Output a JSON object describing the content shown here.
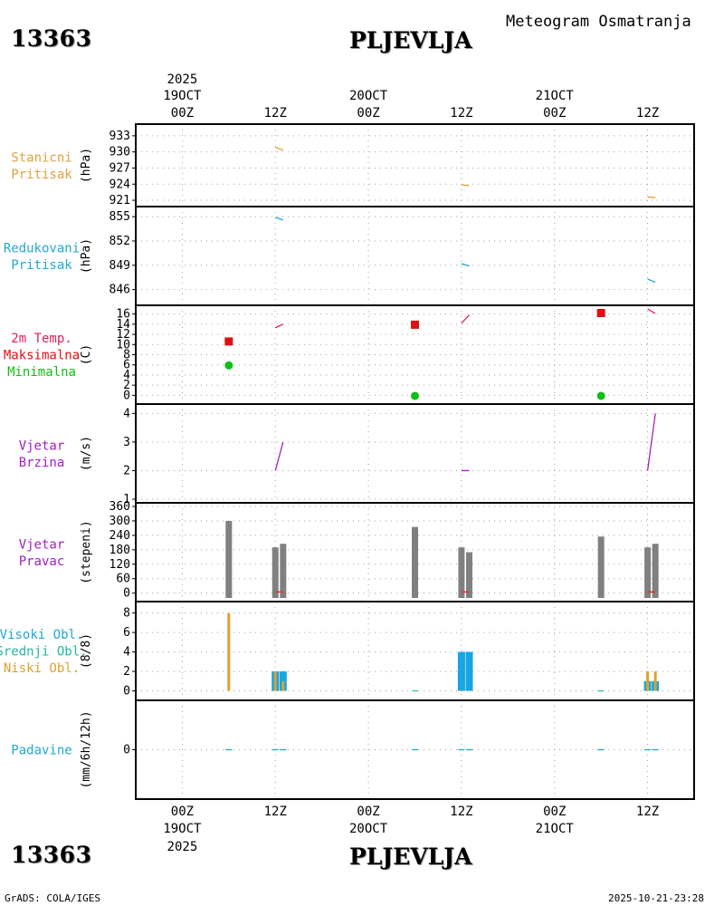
{
  "header": {
    "station_id": "13363",
    "station_name": "PLJEVLJA",
    "subtitle": "Meteogram Osmatranja"
  },
  "footer": {
    "credit": "GrADS: COLA/IGES",
    "timestamp": "2025-10-21-23:28"
  },
  "chart_data": {
    "type": "meteogram",
    "time_axis": {
      "range_hours": [
        -6,
        66
      ],
      "year": "2025",
      "ticks": [
        {
          "h": 0,
          "label": "00Z",
          "date": "19OCT"
        },
        {
          "h": 12,
          "label": "12Z",
          "date": ""
        },
        {
          "h": 24,
          "label": "00Z",
          "date": "20OCT"
        },
        {
          "h": 36,
          "label": "12Z",
          "date": ""
        },
        {
          "h": 48,
          "label": "00Z",
          "date": "21OCT"
        },
        {
          "h": 60,
          "label": "12Z",
          "date": ""
        }
      ]
    },
    "panels": [
      {
        "key": "station_pressure",
        "labels": [
          {
            "text": "Stanicni",
            "color": "#e0a040"
          },
          {
            "text": "Pritisak",
            "color": "#e0a040"
          }
        ],
        "unit": "(hPa)",
        "ylim": [
          920.5,
          934.5
        ],
        "yticks": [
          921,
          924,
          927,
          930,
          933
        ],
        "series": [
          {
            "color": "#e0a040",
            "segments": [
              [
                [
                  12,
                  930.9
                ],
                [
                  13,
                  930.3
                ]
              ],
              [
                [
                  36,
                  923.9
                ],
                [
                  37,
                  923.7
                ]
              ],
              [
                [
                  60,
                  921.6
                ],
                [
                  61,
                  921.5
                ]
              ]
            ]
          }
        ]
      },
      {
        "key": "reduced_pressure",
        "labels": [
          {
            "text": "Redukovani",
            "color": "#20a8d0"
          },
          {
            "text": "Pritisak",
            "color": "#20a8d0"
          }
        ],
        "unit": "(hPa)",
        "ylim": [
          844.5,
          855.8
        ],
        "yticks": [
          846,
          849,
          852,
          855
        ],
        "series": [
          {
            "color": "#20a8d0",
            "segments": [
              [
                [
                  12,
                  854.9
                ],
                [
                  13,
                  854.6
                ]
              ],
              [
                [
                  36,
                  849.2
                ],
                [
                  37,
                  848.9
                ]
              ],
              [
                [
                  60,
                  847.3
                ],
                [
                  61,
                  846.9
                ]
              ]
            ]
          }
        ]
      },
      {
        "key": "temperature",
        "labels": [
          {
            "text": "2m Temp.",
            "color": "#e0205a"
          },
          {
            "text": "Maksimalna",
            "color": "#e01010"
          },
          {
            "text": "Minimalna",
            "color": "#10c010"
          }
        ],
        "unit": "(C)",
        "ylim": [
          -1,
          17
        ],
        "yticks": [
          0,
          2,
          4,
          6,
          8,
          10,
          12,
          14,
          16
        ],
        "series": [
          {
            "color": "#e0205a",
            "segments": [
              [
                [
                  12,
                  13.3
                ],
                [
                  13,
                  14.0
                ]
              ],
              [
                [
                  36,
                  14.2
                ],
                [
                  37,
                  15.8
                ]
              ],
              [
                [
                  60,
                  17.0
                ],
                [
                  61,
                  16.1
                ]
              ]
            ]
          }
        ],
        "max_points": {
          "color": "#e01010",
          "points": [
            [
              6,
              10.6
            ],
            [
              30,
              13.9
            ],
            [
              54,
              16.2
            ]
          ]
        },
        "min_points": {
          "color": "#10c010",
          "points": [
            [
              6,
              5.9
            ],
            [
              30,
              -0.1
            ],
            [
              54,
              -0.1
            ]
          ]
        }
      },
      {
        "key": "wind_speed",
        "labels": [
          {
            "text": "Vjetar",
            "color": "#a020c0"
          },
          {
            "text": "Brzina",
            "color": "#a020c0"
          }
        ],
        "unit": "(m/s)",
        "ylim": [
          1,
          4.2
        ],
        "yticks": [
          1,
          2,
          3,
          4
        ],
        "series": [
          {
            "color": "#a020c0",
            "segments": [
              [
                [
                  12,
                  2
                ],
                [
                  13,
                  3
                ]
              ],
              [
                [
                  36,
                  2
                ],
                [
                  37,
                  2
                ]
              ],
              [
                [
                  60,
                  2
                ],
                [
                  61,
                  4
                ]
              ]
            ]
          }
        ]
      },
      {
        "key": "wind_direction",
        "labels": [
          {
            "text": "Vjetar",
            "color": "#a020c0"
          },
          {
            "text": "Pravac",
            "color": "#a020c0"
          }
        ],
        "unit": "(stepeni)",
        "ylim": [
          -20,
          360
        ],
        "yticks": [
          0,
          60,
          120,
          180,
          240,
          300,
          360
        ],
        "bars": {
          "color": "#808080",
          "base": -20,
          "points": [
            [
              6,
              300
            ],
            [
              12,
              190
            ],
            [
              13,
              205
            ],
            [
              30,
              275
            ],
            [
              36,
              190
            ],
            [
              37,
              170
            ],
            [
              54,
              235
            ],
            [
              60,
              190
            ],
            [
              61,
              205
            ]
          ]
        },
        "red_ticks": [
          12.5,
          36.5,
          60.5
        ]
      },
      {
        "key": "clouds",
        "labels": [
          {
            "text": "Visoki Obl.",
            "color": "#20a8d0"
          },
          {
            "text": "Srednji Obl.",
            "color": "#20b8a0"
          },
          {
            "text": "Niski Obl.",
            "color": "#e0a030"
          }
        ],
        "unit": "(8/8)",
        "ylim": [
          -0.6,
          8.8
        ],
        "yticks": [
          0,
          2,
          4,
          6,
          8
        ],
        "high": {
          "color": "#1aa4e0",
          "points": [
            [
              12,
              2
            ],
            [
              13,
              2
            ],
            [
              36,
              4
            ],
            [
              37,
              4
            ],
            [
              60,
              1
            ],
            [
              61,
              1
            ]
          ]
        },
        "low": {
          "color": "#e0a030",
          "points": [
            [
              6,
              8
            ],
            [
              12,
              2
            ],
            [
              13,
              1
            ],
            [
              60,
              2
            ],
            [
              61,
              2
            ]
          ]
        },
        "mid": {
          "color": "#20b8a0",
          "points": [
            [
              60,
              1
            ]
          ]
        }
      },
      {
        "key": "precipitation",
        "labels": [
          {
            "text": "Padavine",
            "color": "#20a8d0"
          }
        ],
        "unit": "(mm/6h/12h)",
        "ylim": [
          -5,
          5
        ],
        "yticks": [
          0
        ],
        "marks": {
          "color": "#20a8d0",
          "points": [
            6,
            12,
            13,
            30,
            36,
            37,
            54,
            60,
            61
          ]
        }
      }
    ]
  }
}
